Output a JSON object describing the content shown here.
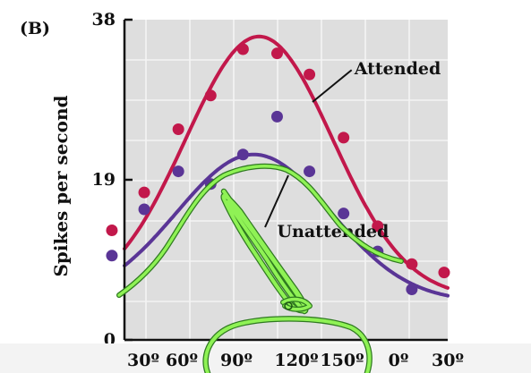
{
  "panel_label": "(B)",
  "colors": {
    "plot_bg": "#dedede",
    "grid": "#f4f4f4",
    "attended": "#c2184b",
    "unattended": "#5a3596",
    "ink": "#8ff255",
    "ink_outline": "#2f7a20",
    "bottom_band": "#f3f3f3"
  },
  "chart_data": {
    "type": "scatter",
    "title": "",
    "xlabel": "",
    "ylabel": "Spikes per second",
    "x_tick_labels": [
      "30º",
      "60º",
      "90º",
      "120º",
      "150º",
      "0º",
      "30º"
    ],
    "xlim": [
      0,
      180
    ],
    "y_ticks": [
      0,
      19,
      38
    ],
    "ylim": [
      0,
      38
    ],
    "grid": true,
    "series": [
      {
        "name": "Attended",
        "color": "#c2184b",
        "points": [
          [
            -7,
            13
          ],
          [
            11,
            17.5
          ],
          [
            30,
            25
          ],
          [
            48,
            29
          ],
          [
            66,
            34.5
          ],
          [
            85,
            34
          ],
          [
            103,
            31.5
          ],
          [
            122,
            24
          ],
          [
            141,
            13.5
          ],
          [
            160,
            9
          ],
          [
            178,
            8
          ]
        ],
        "fit": {
          "peak": 36,
          "center": 75,
          "width": 41,
          "baseline": 5
        }
      },
      {
        "name": "Unattended",
        "color": "#5a3596",
        "points": [
          [
            -7,
            10
          ],
          [
            11,
            15.5
          ],
          [
            30,
            20
          ],
          [
            48,
            18.5
          ],
          [
            66,
            22
          ],
          [
            85,
            26.5
          ],
          [
            103,
            20
          ],
          [
            122,
            15
          ],
          [
            141,
            10.5
          ],
          [
            160,
            6
          ]
        ],
        "fit": {
          "peak": 22,
          "center": 72,
          "width": 43,
          "baseline": 4.5
        }
      }
    ],
    "annotations": [
      {
        "text": "Attended",
        "x": 128,
        "y": 31.5,
        "series": "Attended"
      },
      {
        "text": "Unattended",
        "x": 85,
        "y": 12.2,
        "series": "Unattended"
      }
    ]
  }
}
